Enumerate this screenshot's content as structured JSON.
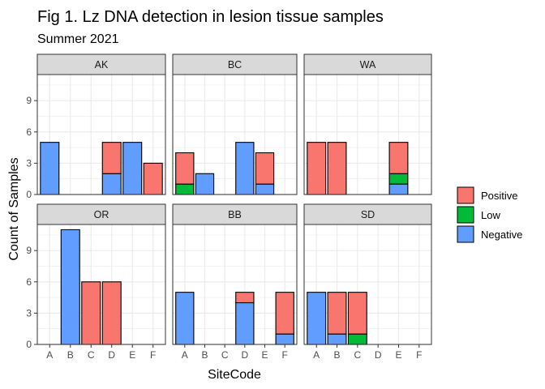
{
  "chart_data": {
    "type": "bar",
    "stacked": true,
    "title": "Fig 1. Lz DNA detection in lesion tissue samples",
    "subtitle": "Summer 2021",
    "xlabel": "SiteCode",
    "ylabel": "Count of Samples",
    "categories": [
      "A",
      "B",
      "C",
      "D",
      "E",
      "F"
    ],
    "y_ticks": [
      0,
      3,
      6,
      9
    ],
    "ylim": [
      0,
      11.5
    ],
    "grid": true,
    "legend": {
      "position": "right",
      "entries": [
        {
          "name": "Positive",
          "color": "#F8766D"
        },
        {
          "name": "Low",
          "color": "#00BA38"
        },
        {
          "name": "Negative",
          "color": "#619CFF"
        }
      ]
    },
    "panels": [
      {
        "name": "AK",
        "series": [
          {
            "name": "Negative",
            "values": [
              5,
              0,
              0,
              2,
              5,
              0
            ]
          },
          {
            "name": "Low",
            "values": [
              0,
              0,
              0,
              0,
              0,
              0
            ]
          },
          {
            "name": "Positive",
            "values": [
              0,
              0,
              0,
              3,
              0,
              3
            ]
          }
        ]
      },
      {
        "name": "BC",
        "series": [
          {
            "name": "Negative",
            "values": [
              0,
              2,
              0,
              5,
              1,
              0
            ]
          },
          {
            "name": "Low",
            "values": [
              1,
              0,
              0,
              0,
              0,
              0
            ]
          },
          {
            "name": "Positive",
            "values": [
              3,
              0,
              0,
              0,
              3,
              0
            ]
          }
        ]
      },
      {
        "name": "WA",
        "series": [
          {
            "name": "Negative",
            "values": [
              0,
              0,
              0,
              0,
              1,
              0
            ]
          },
          {
            "name": "Low",
            "values": [
              0,
              0,
              0,
              0,
              1,
              0
            ]
          },
          {
            "name": "Positive",
            "values": [
              5,
              5,
              0,
              0,
              3,
              0
            ]
          }
        ]
      },
      {
        "name": "OR",
        "series": [
          {
            "name": "Negative",
            "values": [
              0,
              11,
              0,
              0,
              0,
              0
            ]
          },
          {
            "name": "Low",
            "values": [
              0,
              0,
              0,
              0,
              0,
              0
            ]
          },
          {
            "name": "Positive",
            "values": [
              0,
              0,
              6,
              6,
              0,
              0
            ]
          }
        ]
      },
      {
        "name": "BB",
        "series": [
          {
            "name": "Negative",
            "values": [
              5,
              0,
              0,
              4,
              0,
              1
            ]
          },
          {
            "name": "Low",
            "values": [
              0,
              0,
              0,
              0,
              0,
              0
            ]
          },
          {
            "name": "Positive",
            "values": [
              0,
              0,
              0,
              1,
              0,
              4
            ]
          }
        ]
      },
      {
        "name": "SD",
        "series": [
          {
            "name": "Negative",
            "values": [
              5,
              1,
              0,
              0,
              0,
              0
            ]
          },
          {
            "name": "Low",
            "values": [
              0,
              0,
              1,
              0,
              0,
              0
            ]
          },
          {
            "name": "Positive",
            "values": [
              0,
              4,
              4,
              0,
              0,
              0
            ]
          }
        ]
      }
    ]
  }
}
